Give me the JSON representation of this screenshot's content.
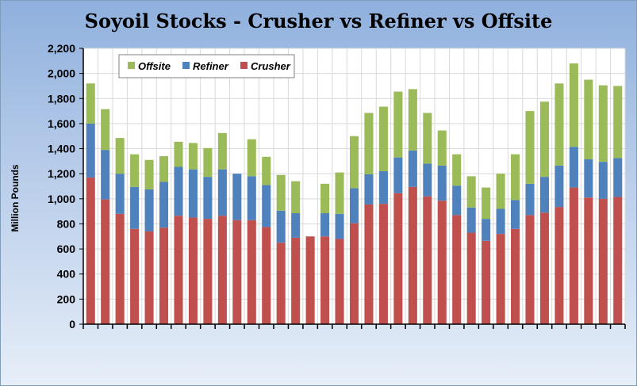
{
  "chart_data": {
    "type": "bar",
    "stacked": true,
    "title": "Soyoil Stocks - Crusher vs Refiner vs Offsite",
    "ylabel": "Million Pounds",
    "xlabel": "",
    "ylim": [
      0,
      2200
    ],
    "yticks": [
      0,
      200,
      400,
      600,
      800,
      1000,
      1200,
      1400,
      1600,
      1800,
      2000,
      2200
    ],
    "ytick_labels": [
      "0",
      "200",
      "400",
      "600",
      "800",
      "1,000",
      "1,200",
      "1,400",
      "1,600",
      "1,800",
      "2,000",
      "2,200"
    ],
    "grid": true,
    "legend_position": "top-left",
    "legend_order": [
      "Offsite",
      "Refiner",
      "Crusher"
    ],
    "series": [
      {
        "name": "Crusher",
        "color": "#c0504d",
        "values": [
          1170,
          995,
          880,
          760,
          740,
          770,
          865,
          850,
          840,
          865,
          830,
          830,
          775,
          650,
          690,
          700,
          700,
          680,
          805,
          955,
          960,
          1045,
          1095,
          1020,
          985,
          870,
          730,
          665,
          720,
          760,
          870,
          890,
          935,
          1090,
          1010,
          1000,
          1015
        ]
      },
      {
        "name": "Refiner",
        "color": "#4f81bd",
        "values": [
          430,
          395,
          320,
          335,
          335,
          365,
          390,
          385,
          335,
          370,
          370,
          350,
          335,
          255,
          195,
          0,
          185,
          200,
          280,
          240,
          260,
          285,
          290,
          260,
          280,
          235,
          200,
          175,
          200,
          230,
          250,
          285,
          330,
          325,
          305,
          295,
          310
        ]
      },
      {
        "name": "Offsite",
        "color": "#9bbb59",
        "values": [
          320,
          325,
          285,
          260,
          235,
          205,
          200,
          210,
          230,
          290,
          0,
          295,
          225,
          285,
          255,
          0,
          235,
          330,
          415,
          490,
          515,
          525,
          490,
          405,
          280,
          250,
          250,
          250,
          280,
          365,
          580,
          600,
          655,
          665,
          635,
          610,
          575
        ]
      }
    ]
  }
}
